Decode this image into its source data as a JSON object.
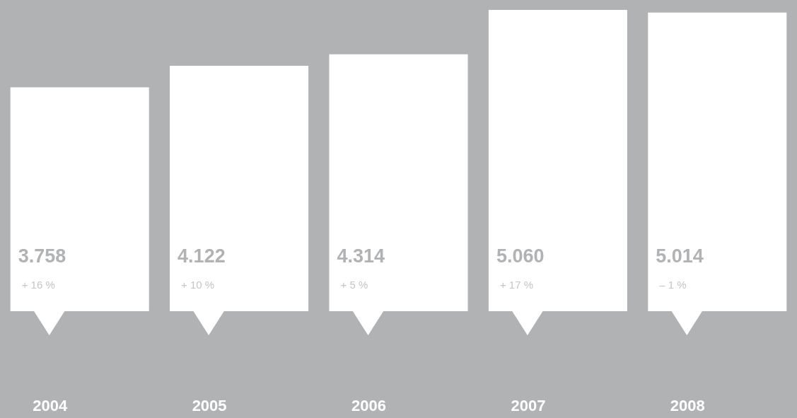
{
  "chart_data": {
    "type": "bar",
    "categories": [
      "2004",
      "2005",
      "2006",
      "2007",
      "2008"
    ],
    "values": [
      3758,
      4122,
      4314,
      5060,
      5014
    ],
    "value_labels": [
      "3.758",
      "4.122",
      "4.314",
      "5.060",
      "5.014"
    ],
    "color": "#ffffff",
    "annotations": [
      "+ 16 %",
      "+ 10 %",
      "+ 5 %",
      "+ 17 %",
      "– 1 %"
    ],
    "grid": false
  }
}
